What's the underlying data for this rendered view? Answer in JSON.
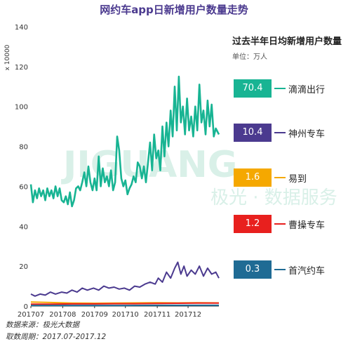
{
  "chart_data": {
    "type": "line",
    "title": "网约车app日新增用户数量走势",
    "y_unit": "x 10000",
    "ylim": [
      0,
      140
    ],
    "yticks": [
      0,
      20,
      40,
      60,
      80,
      100,
      120,
      140
    ],
    "xlim": [
      "2017-07-01",
      "2017-12-31"
    ],
    "xticks": [
      {
        "label": "201707",
        "date": "2017-07-01"
      },
      {
        "label": "201708",
        "date": "2017-08-01"
      },
      {
        "label": "201709",
        "date": "2017-09-01"
      },
      {
        "label": "201710",
        "date": "2017-10-01"
      },
      {
        "label": "201711",
        "date": "2017-11-01"
      },
      {
        "label": "201712",
        "date": "2017-12-01"
      }
    ],
    "legend_title": "过去半年日均新增用户数量",
    "legend_unit": "单位：万人",
    "series": [
      {
        "name": "滴滴出行",
        "avg": "70.4",
        "color": "#18b493",
        "points": [
          [
            "2017-07-01",
            61
          ],
          [
            "2017-07-03",
            52
          ],
          [
            "2017-07-05",
            58
          ],
          [
            "2017-07-07",
            54
          ],
          [
            "2017-07-09",
            59
          ],
          [
            "2017-07-11",
            55
          ],
          [
            "2017-07-13",
            58
          ],
          [
            "2017-07-15",
            53
          ],
          [
            "2017-07-17",
            59
          ],
          [
            "2017-07-19",
            55
          ],
          [
            "2017-07-21",
            58
          ],
          [
            "2017-07-23",
            54
          ],
          [
            "2017-07-25",
            60
          ],
          [
            "2017-07-27",
            55
          ],
          [
            "2017-07-29",
            59
          ],
          [
            "2017-07-31",
            53
          ],
          [
            "2017-08-02",
            52
          ],
          [
            "2017-08-04",
            55
          ],
          [
            "2017-08-06",
            51
          ],
          [
            "2017-08-08",
            57
          ],
          [
            "2017-08-10",
            50
          ],
          [
            "2017-08-12",
            53
          ],
          [
            "2017-08-14",
            59
          ],
          [
            "2017-08-16",
            60
          ],
          [
            "2017-08-18",
            58
          ],
          [
            "2017-08-20",
            62
          ],
          [
            "2017-08-22",
            67
          ],
          [
            "2017-08-24",
            60
          ],
          [
            "2017-08-26",
            70
          ],
          [
            "2017-08-28",
            62
          ],
          [
            "2017-08-30",
            58
          ],
          [
            "2017-09-01",
            64
          ],
          [
            "2017-09-03",
            58
          ],
          [
            "2017-09-05",
            75
          ],
          [
            "2017-09-07",
            60
          ],
          [
            "2017-09-09",
            69
          ],
          [
            "2017-09-11",
            62
          ],
          [
            "2017-09-13",
            65
          ],
          [
            "2017-09-15",
            60
          ],
          [
            "2017-09-17",
            68
          ],
          [
            "2017-09-19",
            58
          ],
          [
            "2017-09-21",
            62
          ],
          [
            "2017-09-23",
            85
          ],
          [
            "2017-09-25",
            78
          ],
          [
            "2017-09-27",
            64
          ],
          [
            "2017-09-29",
            60
          ],
          [
            "2017-10-01",
            63
          ],
          [
            "2017-10-03",
            56
          ],
          [
            "2017-10-05",
            59
          ],
          [
            "2017-10-07",
            61
          ],
          [
            "2017-10-09",
            65
          ],
          [
            "2017-10-11",
            62
          ],
          [
            "2017-10-13",
            72
          ],
          [
            "2017-10-15",
            70
          ],
          [
            "2017-10-17",
            64
          ],
          [
            "2017-10-19",
            70
          ],
          [
            "2017-10-21",
            62
          ],
          [
            "2017-10-23",
            72
          ],
          [
            "2017-10-25",
            82
          ],
          [
            "2017-10-27",
            68
          ],
          [
            "2017-10-29",
            86
          ],
          [
            "2017-10-31",
            74
          ],
          [
            "2017-11-02",
            78
          ],
          [
            "2017-11-04",
            68
          ],
          [
            "2017-11-06",
            90
          ],
          [
            "2017-11-08",
            75
          ],
          [
            "2017-11-10",
            92
          ],
          [
            "2017-11-12",
            80
          ],
          [
            "2017-11-14",
            98
          ],
          [
            "2017-11-16",
            85
          ],
          [
            "2017-11-18",
            110
          ],
          [
            "2017-11-20",
            88
          ],
          [
            "2017-11-22",
            115
          ],
          [
            "2017-11-24",
            92
          ],
          [
            "2017-11-26",
            100
          ],
          [
            "2017-11-28",
            86
          ],
          [
            "2017-11-30",
            104
          ],
          [
            "2017-12-02",
            88
          ],
          [
            "2017-12-04",
            95
          ],
          [
            "2017-12-06",
            85
          ],
          [
            "2017-12-08",
            100
          ],
          [
            "2017-12-10",
            88
          ],
          [
            "2017-12-12",
            111
          ],
          [
            "2017-12-14",
            92
          ],
          [
            "2017-12-16",
            98
          ],
          [
            "2017-12-18",
            86
          ],
          [
            "2017-12-20",
            103
          ],
          [
            "2017-12-22",
            90
          ],
          [
            "2017-12-24",
            101
          ],
          [
            "2017-12-26",
            85
          ],
          [
            "2017-12-28",
            89
          ],
          [
            "2017-12-31",
            86
          ]
        ]
      },
      {
        "name": "神州专车",
        "avg": "10.4",
        "color": "#4b3a8f",
        "points": [
          [
            "2017-07-01",
            6
          ],
          [
            "2017-07-05",
            5
          ],
          [
            "2017-07-10",
            6
          ],
          [
            "2017-07-15",
            5.5
          ],
          [
            "2017-07-20",
            7
          ],
          [
            "2017-07-25",
            6
          ],
          [
            "2017-07-31",
            7
          ],
          [
            "2017-08-05",
            6.5
          ],
          [
            "2017-08-10",
            8
          ],
          [
            "2017-08-15",
            7
          ],
          [
            "2017-08-20",
            9
          ],
          [
            "2017-08-25",
            8
          ],
          [
            "2017-08-31",
            9
          ],
          [
            "2017-09-05",
            8
          ],
          [
            "2017-09-10",
            10
          ],
          [
            "2017-09-15",
            9
          ],
          [
            "2017-09-20",
            9.5
          ],
          [
            "2017-09-25",
            8.5
          ],
          [
            "2017-09-30",
            9
          ],
          [
            "2017-10-05",
            8
          ],
          [
            "2017-10-10",
            10
          ],
          [
            "2017-10-15",
            9.5
          ],
          [
            "2017-10-20",
            11
          ],
          [
            "2017-10-25",
            12
          ],
          [
            "2017-10-30",
            11
          ],
          [
            "2017-11-02",
            14
          ],
          [
            "2017-11-06",
            12
          ],
          [
            "2017-11-10",
            17
          ],
          [
            "2017-11-14",
            14
          ],
          [
            "2017-11-18",
            19
          ],
          [
            "2017-11-21",
            22
          ],
          [
            "2017-11-24",
            16
          ],
          [
            "2017-11-27",
            20
          ],
          [
            "2017-11-30",
            15
          ],
          [
            "2017-12-04",
            18
          ],
          [
            "2017-12-08",
            16
          ],
          [
            "2017-12-12",
            20
          ],
          [
            "2017-12-16",
            15
          ],
          [
            "2017-12-20",
            19
          ],
          [
            "2017-12-24",
            16
          ],
          [
            "2017-12-28",
            17
          ],
          [
            "2017-12-31",
            14
          ]
        ]
      },
      {
        "name": "易到",
        "avg": "1.6",
        "color": "#f5a800",
        "points": [
          [
            "2017-07-01",
            2
          ],
          [
            "2017-07-20",
            1.8
          ],
          [
            "2017-08-10",
            1.5
          ],
          [
            "2017-09-01",
            1.4
          ],
          [
            "2017-09-20",
            1.5
          ],
          [
            "2017-10-10",
            1.6
          ],
          [
            "2017-11-01",
            1.7
          ],
          [
            "2017-11-20",
            1.6
          ],
          [
            "2017-12-10",
            1.7
          ],
          [
            "2017-12-31",
            1.6
          ]
        ]
      },
      {
        "name": "曹操专车",
        "avg": "1.2",
        "color": "#e8201e",
        "points": [
          [
            "2017-07-01",
            1
          ],
          [
            "2017-07-20",
            1
          ],
          [
            "2017-08-10",
            1.1
          ],
          [
            "2017-09-01",
            1.1
          ],
          [
            "2017-09-20",
            1.2
          ],
          [
            "2017-10-10",
            1.2
          ],
          [
            "2017-11-01",
            1.3
          ],
          [
            "2017-11-20",
            1.4
          ],
          [
            "2017-12-10",
            1.5
          ],
          [
            "2017-12-31",
            1.5
          ]
        ]
      },
      {
        "name": "首汽约车",
        "avg": "0.3",
        "color": "#1f6b94",
        "points": [
          [
            "2017-07-01",
            0.3
          ],
          [
            "2017-08-01",
            0.3
          ],
          [
            "2017-09-01",
            0.3
          ],
          [
            "2017-10-01",
            0.3
          ],
          [
            "2017-11-01",
            0.4
          ],
          [
            "2017-12-01",
            0.4
          ],
          [
            "2017-12-31",
            0.4
          ]
        ]
      }
    ]
  },
  "footer": {
    "source": "数据来源：极光大数据",
    "period": "取数周期：2017.07-2017.12"
  },
  "watermark": {
    "text": "JIGUANG",
    "subtext": "极光 · 数据服务",
    "color": "#d9f0e8"
  }
}
